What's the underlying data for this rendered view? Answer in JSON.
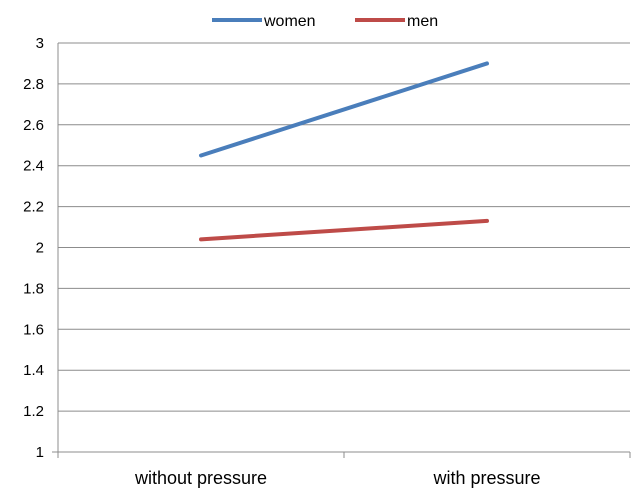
{
  "chart_data": {
    "type": "line",
    "categories": [
      "without pressure",
      "with pressure"
    ],
    "series": [
      {
        "name": "women",
        "values": [
          2.45,
          2.9
        ],
        "color": "#4a7ebb"
      },
      {
        "name": "men",
        "values": [
          2.04,
          2.13
        ],
        "color": "#be4b48"
      }
    ],
    "ylim": [
      1,
      3
    ],
    "yticks": [
      1,
      1.2,
      1.4,
      1.6,
      1.8,
      2,
      2.2,
      2.4,
      2.6,
      2.8,
      3
    ],
    "grid": true,
    "legend": "top-center",
    "title": "",
    "xlabel": "",
    "ylabel": ""
  }
}
